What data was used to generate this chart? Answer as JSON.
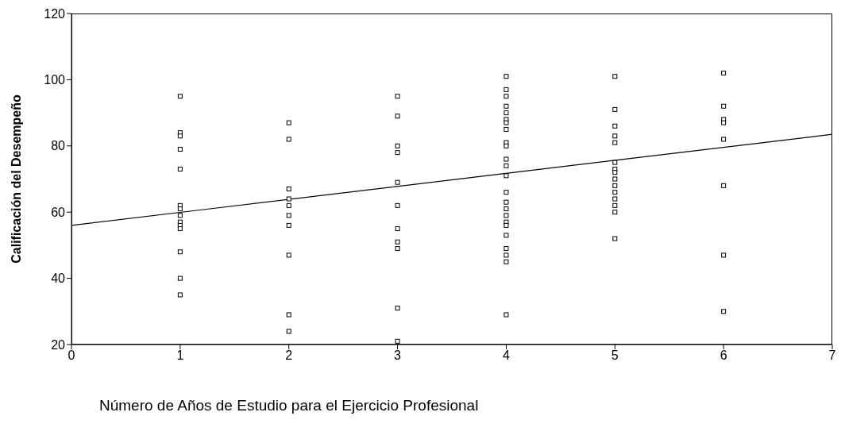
{
  "chart_data": {
    "type": "scatter",
    "xlabel": "Número de Años de Estudio para el Ejercicio Profesional",
    "ylabel": "Calificación del Desempeño",
    "xlim": [
      0,
      7
    ],
    "xticks": [
      0,
      1,
      2,
      3,
      4,
      5,
      6,
      7
    ],
    "ylim": [
      20,
      120
    ],
    "yticks": [
      20,
      40,
      60,
      80,
      100,
      120
    ],
    "marker": "square",
    "series": [
      {
        "color": "#000000",
        "x": [
          1,
          1,
          1,
          1,
          1,
          1,
          1,
          1,
          1,
          1,
          1,
          1,
          1,
          1,
          2,
          2,
          2,
          2,
          2,
          2,
          2,
          2,
          2,
          2,
          3,
          3,
          3,
          3,
          3,
          3,
          3,
          3,
          3,
          3,
          3,
          4,
          4,
          4,
          4,
          4,
          4,
          4,
          4,
          4,
          4,
          4,
          4,
          4,
          4,
          4,
          4,
          4,
          4,
          4,
          4,
          4,
          4,
          4,
          4,
          5,
          5,
          5,
          5,
          5,
          5,
          5,
          5,
          5,
          5,
          5,
          5,
          5,
          5,
          5,
          6,
          6,
          6,
          6,
          6,
          6,
          6,
          6
        ],
        "values": [
          95,
          84,
          83,
          79,
          73,
          62,
          61,
          59,
          57,
          56,
          55,
          48,
          40,
          35,
          87,
          82,
          67,
          64,
          62,
          59,
          56,
          47,
          29,
          24,
          95,
          89,
          80,
          78,
          69,
          62,
          55,
          51,
          49,
          31,
          21,
          101,
          97,
          95,
          92,
          90,
          88,
          87,
          85,
          81,
          80,
          76,
          74,
          71,
          66,
          63,
          61,
          59,
          57,
          56,
          53,
          49,
          47,
          45,
          29,
          101,
          91,
          86,
          83,
          81,
          75,
          73,
          72,
          70,
          68,
          66,
          64,
          62,
          60,
          52,
          102,
          92,
          88,
          87,
          82,
          68,
          47,
          30
        ]
      },
      {
        "type": "line",
        "color": "#000000",
        "marker": "none",
        "x": [
          0,
          7
        ],
        "values": [
          56,
          83.5
        ]
      }
    ]
  }
}
